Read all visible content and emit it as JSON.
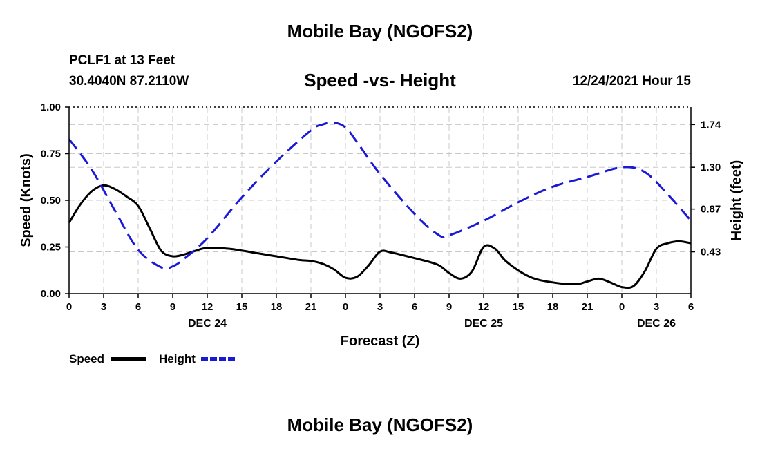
{
  "page": {
    "title": "Mobile Bay (NGOFS2)",
    "footer_title": "Mobile Bay (NGOFS2)",
    "station": "PCLF1 at 13 Feet",
    "coordinates": "30.4040N  87.2110W",
    "timestamp": "12/24/2021 Hour 15"
  },
  "colors": {
    "speed": "#000000",
    "height": "#1a1ad6",
    "grid": "#c8c8c8"
  },
  "chart_data": {
    "type": "line",
    "title": "Speed -vs- Height",
    "xlabel": "Forecast (Z)",
    "ylabel": "Speed (Knots)",
    "y2label": "Height (feet)",
    "xlim": [
      0,
      54
    ],
    "ylim": [
      0,
      1.0
    ],
    "y2lim": [
      0.0,
      1.92
    ],
    "x_ticks": [
      0,
      3,
      6,
      9,
      12,
      15,
      18,
      21,
      24,
      27,
      30,
      33,
      36,
      39,
      42,
      45,
      48,
      51,
      54
    ],
    "x_tick_labels": [
      "0",
      "3",
      "6",
      "9",
      "12",
      "15",
      "18",
      "21",
      "0",
      "3",
      "6",
      "9",
      "12",
      "15",
      "18",
      "21",
      "0",
      "3",
      "6"
    ],
    "y_ticks": [
      0,
      0.25,
      0.5,
      0.75,
      1.0
    ],
    "y_tick_labels": [
      "0.00",
      "0.25",
      "0.50",
      "0.75",
      "1.00"
    ],
    "y2_ticks": [
      0.43,
      0.87,
      1.3,
      1.74
    ],
    "y2_tick_labels": [
      "0.43",
      "0.87",
      "1.30",
      "1.74"
    ],
    "date_labels": [
      {
        "x": 12,
        "label": "DEC 24"
      },
      {
        "x": 36,
        "label": "DEC 25"
      },
      {
        "x": 51,
        "label": "DEC 26"
      }
    ],
    "series": [
      {
        "name": "Speed",
        "axis": "left",
        "style": "solid",
        "x": [
          0,
          1,
          2,
          3,
          4,
          5,
          6,
          7,
          8,
          9,
          10,
          11,
          12,
          14,
          16,
          18,
          20,
          21,
          22,
          23,
          24,
          25,
          26,
          27,
          28,
          30,
          32,
          33,
          34,
          35,
          36,
          37,
          38,
          40,
          42,
          44,
          45,
          46,
          47,
          48,
          49,
          50,
          51,
          52,
          53,
          54
        ],
        "y": [
          0.38,
          0.48,
          0.55,
          0.58,
          0.56,
          0.52,
          0.47,
          0.35,
          0.23,
          0.2,
          0.21,
          0.23,
          0.245,
          0.24,
          0.22,
          0.2,
          0.18,
          0.175,
          0.16,
          0.13,
          0.085,
          0.09,
          0.15,
          0.225,
          0.22,
          0.19,
          0.155,
          0.11,
          0.08,
          0.12,
          0.25,
          0.24,
          0.17,
          0.09,
          0.06,
          0.05,
          0.065,
          0.08,
          0.06,
          0.035,
          0.04,
          0.12,
          0.24,
          0.27,
          0.28,
          0.27
        ]
      },
      {
        "name": "Height",
        "axis": "right",
        "style": "dashed",
        "x": [
          0,
          2,
          4,
          6,
          8,
          9,
          10,
          12,
          15,
          18,
          21,
          22,
          23,
          24,
          25,
          27,
          30,
          32,
          33,
          36,
          39,
          42,
          45,
          48,
          50,
          52,
          54
        ],
        "y": [
          1.59,
          1.27,
          0.85,
          0.45,
          0.27,
          0.28,
          0.36,
          0.57,
          0.99,
          1.36,
          1.68,
          1.74,
          1.76,
          1.71,
          1.56,
          1.23,
          0.82,
          0.61,
          0.6,
          0.75,
          0.94,
          1.1,
          1.2,
          1.3,
          1.25,
          1.02,
          0.75
        ]
      }
    ],
    "legend": [
      {
        "label": "Speed",
        "style": "solid"
      },
      {
        "label": "Height",
        "style": "dashed"
      }
    ],
    "grid": true
  }
}
